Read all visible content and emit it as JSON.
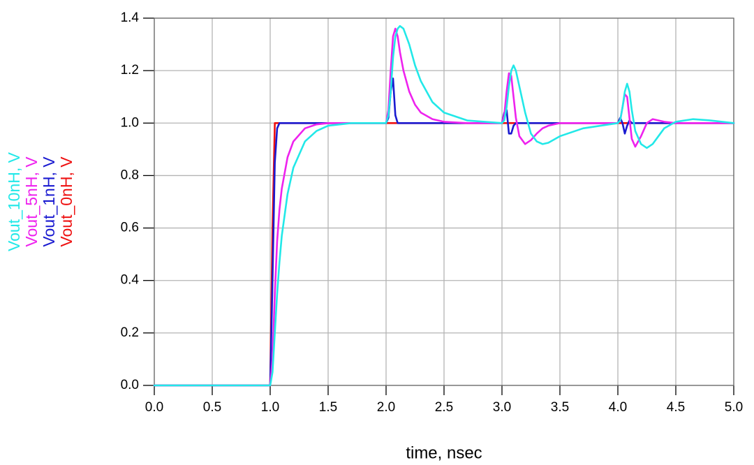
{
  "chart_data": {
    "type": "line",
    "x_label": "time, nsec",
    "x": [
      0,
      0.98,
      1.0,
      1.02,
      1.04,
      1.06,
      1.08,
      1.1,
      1.15,
      1.2,
      1.3,
      1.4,
      1.5,
      1.7,
      2.0,
      2.02,
      2.04,
      2.06,
      2.08,
      2.1,
      2.12,
      2.15,
      2.2,
      2.25,
      2.3,
      2.4,
      2.5,
      2.7,
      3.0,
      3.02,
      3.04,
      3.06,
      3.08,
      3.1,
      3.12,
      3.15,
      3.2,
      3.25,
      3.3,
      3.35,
      3.4,
      3.5,
      3.7,
      4.0,
      4.02,
      4.04,
      4.06,
      4.08,
      4.1,
      4.12,
      4.15,
      4.2,
      4.25,
      4.3,
      4.35,
      4.4,
      4.5,
      4.65,
      4.8,
      5.0
    ],
    "series": [
      {
        "name": "Vout_10nH, V",
        "color": "#22e8e8",
        "values": [
          0,
          0,
          0,
          0.05,
          0.2,
          0.35,
          0.47,
          0.57,
          0.73,
          0.83,
          0.93,
          0.97,
          0.99,
          1,
          1,
          1.03,
          1.12,
          1.25,
          1.33,
          1.36,
          1.37,
          1.36,
          1.3,
          1.22,
          1.16,
          1.08,
          1.04,
          1.01,
          1,
          1.01,
          1.06,
          1.14,
          1.2,
          1.22,
          1.2,
          1.14,
          1.04,
          0.96,
          0.93,
          0.92,
          0.925,
          0.95,
          0.98,
          1,
          1.01,
          1.06,
          1.12,
          1.15,
          1.12,
          1.05,
          0.97,
          0.92,
          0.905,
          0.92,
          0.95,
          0.98,
          1.005,
          1.015,
          1.01,
          1
        ]
      },
      {
        "name": "Vout_5nH, V",
        "color": "#ee22ee",
        "values": [
          0,
          0,
          0,
          0.1,
          0.35,
          0.55,
          0.67,
          0.75,
          0.87,
          0.93,
          0.98,
          0.995,
          1,
          1,
          1,
          1.05,
          1.2,
          1.33,
          1.36,
          1.33,
          1.27,
          1.2,
          1.12,
          1.07,
          1.04,
          1.015,
          1.005,
          1,
          1,
          1.03,
          1.12,
          1.19,
          1.18,
          1.1,
          1.02,
          0.95,
          0.92,
          0.935,
          0.96,
          0.98,
          0.99,
          1,
          1,
          1,
          1.01,
          1.06,
          1.11,
          1.1,
          1.02,
          0.94,
          0.91,
          0.95,
          1,
          1.015,
          1.01,
          1.005,
          1,
          1,
          1,
          1
        ]
      },
      {
        "name": "Vout_1nH, V",
        "color": "#1a1ad0",
        "values": [
          0,
          0,
          0,
          0.4,
          0.85,
          0.98,
          1,
          1,
          1,
          1,
          1,
          1,
          1,
          1,
          1,
          1.02,
          1.12,
          1.17,
          1.03,
          1,
          1,
          1,
          1,
          1,
          1,
          1,
          1,
          1,
          1,
          1.04,
          1.05,
          0.96,
          0.96,
          0.99,
          1,
          1,
          1,
          1,
          1,
          1,
          1,
          1,
          1,
          1,
          1.02,
          1,
          0.96,
          0.99,
          1.01,
          1,
          1,
          1,
          1,
          1,
          1,
          1,
          1,
          1,
          1,
          1
        ]
      },
      {
        "name": "Vout_0nH, V",
        "color": "#ee1111",
        "values": [
          0,
          0,
          0,
          0.6,
          1,
          1,
          1,
          1,
          1,
          1,
          1,
          1,
          1,
          1,
          1,
          1,
          1,
          1,
          1,
          1,
          1,
          1,
          1,
          1,
          1,
          1,
          1,
          1,
          1,
          1,
          1,
          1,
          1,
          1,
          1,
          1,
          1,
          1,
          1,
          1,
          1,
          1,
          1,
          1,
          1,
          1,
          1,
          1,
          1,
          1,
          1,
          1,
          1,
          1,
          1,
          1,
          1,
          1,
          1,
          1
        ]
      }
    ],
    "xlim": [
      0,
      5
    ],
    "xticks": [
      {
        "value": 0,
        "label": "0.0"
      },
      0.5,
      {
        "value": 1,
        "label": "1.0"
      },
      1.5,
      {
        "value": 2,
        "label": "2.0"
      },
      2.5,
      {
        "value": 3,
        "label": "3.0"
      },
      3.5,
      {
        "value": 4,
        "label": "4.0"
      },
      4.5,
      {
        "value": 5,
        "label": "5.0"
      }
    ],
    "ylim": [
      0,
      1.4
    ],
    "yticks": [
      {
        "value": 0,
        "label": "0.0"
      },
      0.2,
      0.4,
      0.6,
      0.8,
      {
        "value": 1,
        "label": "1.0"
      },
      1.2,
      1.4
    ],
    "grid": true
  }
}
